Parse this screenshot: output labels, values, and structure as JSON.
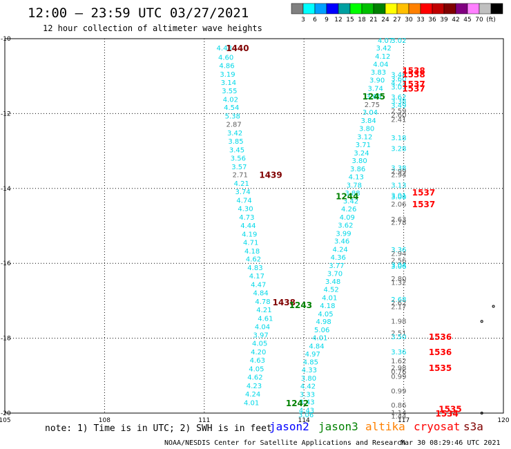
{
  "title": "12:00 – 23:59 UTC 03/27/2021",
  "subtitle": "12 hour collection of altimeter wave heights",
  "colorbar": {
    "colors": [
      "#808080",
      "#00ffff",
      "#00a0ff",
      "#0000ff",
      "#00a0a0",
      "#00ff00",
      "#00c000",
      "#008000",
      "#ffff00",
      "#ffc000",
      "#ff8000",
      "#ff0000",
      "#c00000",
      "#800000",
      "#800080",
      "#ff80ff",
      "#c0c0c0",
      "#000000"
    ],
    "ticks": [
      "3",
      "6",
      "9",
      "12",
      "15",
      "18",
      "21",
      "24",
      "27",
      "30",
      "33",
      "36",
      "39",
      "42",
      "45",
      "70",
      "(ft)"
    ]
  },
  "axes": {
    "x_ticks": [
      "105",
      "108",
      "111",
      "114",
      "117",
      "120"
    ],
    "y_ticks": [
      "-10",
      "-12",
      "-14",
      "-16",
      "-18",
      "-20"
    ]
  },
  "note": "note:  1) Time is in UTC; 2) SWH is in feet",
  "satellites": [
    {
      "name": "jason2",
      "color": "#0000ff"
    },
    {
      "name": "jason3",
      "color": "#008000"
    },
    {
      "name": "altika",
      "color": "#ff8000"
    },
    {
      "name": "cryosat",
      "color": "#ff0000"
    },
    {
      "name": "s3a",
      "color": "#800000"
    }
  ],
  "credit": "NOAA/NESDIS Center for Satellite Applications and Research",
  "timestamp": "Mar 30 08:29:46 UTC 2021",
  "chart_data": {
    "type": "scatter",
    "xlim": [
      105,
      120
    ],
    "ylim": [
      -20,
      -10
    ],
    "grid": true,
    "points": [
      {
        "x": 111.6,
        "y": -10.24,
        "v": "4.48",
        "c": "#00d8e8"
      },
      {
        "x": 111.65,
        "y": -10.49,
        "v": "4.60",
        "c": "#00d8e8"
      },
      {
        "x": 111.68,
        "y": -10.71,
        "v": "4.86",
        "c": "#00d8e8"
      },
      {
        "x": 111.7,
        "y": -10.94,
        "v": "3.19",
        "c": "#00d8e8"
      },
      {
        "x": 111.73,
        "y": -11.16,
        "v": "3.14",
        "c": "#00d8e8"
      },
      {
        "x": 111.76,
        "y": -11.38,
        "v": "3.55",
        "c": "#00d8e8"
      },
      {
        "x": 111.79,
        "y": -11.61,
        "v": "4.02",
        "c": "#00d8e8"
      },
      {
        "x": 111.82,
        "y": -11.83,
        "v": "4.54",
        "c": "#00d8e8"
      },
      {
        "x": 111.85,
        "y": -12.06,
        "v": "5.38",
        "c": "#00d8e8"
      },
      {
        "x": 111.89,
        "y": -12.28,
        "v": "2.87",
        "c": "#606060"
      },
      {
        "x": 111.92,
        "y": -12.51,
        "v": "3.42",
        "c": "#00d8e8"
      },
      {
        "x": 111.95,
        "y": -12.73,
        "v": "3.85",
        "c": "#00d8e8"
      },
      {
        "x": 111.98,
        "y": -12.96,
        "v": "3.45",
        "c": "#00d8e8"
      },
      {
        "x": 112.02,
        "y": -13.18,
        "v": "3.56",
        "c": "#00d8e8"
      },
      {
        "x": 112.05,
        "y": -13.41,
        "v": "3.57",
        "c": "#00d8e8"
      },
      {
        "x": 112.08,
        "y": -13.63,
        "v": "2.71",
        "c": "#606060"
      },
      {
        "x": 112.12,
        "y": -13.86,
        "v": "4.21",
        "c": "#00d8e8"
      },
      {
        "x": 112.16,
        "y": -14.08,
        "v": "3.74",
        "c": "#00d8e8"
      },
      {
        "x": 112.2,
        "y": -14.31,
        "v": "4.74",
        "c": "#00d8e8"
      },
      {
        "x": 112.24,
        "y": -14.53,
        "v": "4.30",
        "c": "#00d8e8"
      },
      {
        "x": 112.28,
        "y": -14.76,
        "v": "4.73",
        "c": "#00d8e8"
      },
      {
        "x": 112.32,
        "y": -14.98,
        "v": "4.44",
        "c": "#00d8e8"
      },
      {
        "x": 112.36,
        "y": -15.21,
        "v": "4.19",
        "c": "#00d8e8"
      },
      {
        "x": 112.4,
        "y": -15.43,
        "v": "4.71",
        "c": "#00d8e8"
      },
      {
        "x": 112.44,
        "y": -15.66,
        "v": "4.18",
        "c": "#00d8e8"
      },
      {
        "x": 112.48,
        "y": -15.88,
        "v": "4.62",
        "c": "#00d8e8"
      },
      {
        "x": 112.53,
        "y": -16.11,
        "v": "4.83",
        "c": "#00d8e8"
      },
      {
        "x": 112.58,
        "y": -16.33,
        "v": "4.17",
        "c": "#00d8e8"
      },
      {
        "x": 112.63,
        "y": -16.56,
        "v": "4.47",
        "c": "#00d8e8"
      },
      {
        "x": 112.7,
        "y": -16.78,
        "v": "4.84",
        "c": "#00d8e8"
      },
      {
        "x": 112.76,
        "y": -17.01,
        "v": "4.78",
        "c": "#00d8e8"
      },
      {
        "x": 112.8,
        "y": -17.23,
        "v": "4.21",
        "c": "#00d8e8"
      },
      {
        "x": 112.84,
        "y": -17.46,
        "v": "4.61",
        "c": "#00d8e8"
      },
      {
        "x": 112.75,
        "y": -17.68,
        "v": "4.04",
        "c": "#00d8e8"
      },
      {
        "x": 112.7,
        "y": -17.91,
        "v": "3.97",
        "c": "#00d8e8"
      },
      {
        "x": 112.67,
        "y": -18.13,
        "v": "4.05",
        "c": "#00d8e8"
      },
      {
        "x": 112.63,
        "y": -18.36,
        "v": "4.20",
        "c": "#00d8e8"
      },
      {
        "x": 112.6,
        "y": -18.58,
        "v": "4.63",
        "c": "#00d8e8"
      },
      {
        "x": 112.57,
        "y": -18.81,
        "v": "4.05",
        "c": "#00d8e8"
      },
      {
        "x": 112.53,
        "y": -19.03,
        "v": "4.62",
        "c": "#00d8e8"
      },
      {
        "x": 112.5,
        "y": -19.26,
        "v": "4.23",
        "c": "#00d8e8"
      },
      {
        "x": 112.46,
        "y": -19.48,
        "v": "4.24",
        "c": "#00d8e8"
      },
      {
        "x": 112.42,
        "y": -19.71,
        "v": "4.01",
        "c": "#00d8e8"
      },
      {
        "x": 116.45,
        "y": -10.04,
        "v": "4.07",
        "c": "#00d8e8"
      },
      {
        "x": 116.85,
        "y": -10.04,
        "v": "3.02",
        "c": "#00d8e8"
      },
      {
        "x": 116.4,
        "y": -10.24,
        "v": "3.42",
        "c": "#00d8e8"
      },
      {
        "x": 116.37,
        "y": -10.46,
        "v": "4.12",
        "c": "#00d8e8"
      },
      {
        "x": 116.31,
        "y": -10.67,
        "v": "4.04",
        "c": "#00d8e8"
      },
      {
        "x": 116.24,
        "y": -10.89,
        "v": "3.83",
        "c": "#00d8e8"
      },
      {
        "x": 116.2,
        "y": -11.1,
        "v": "3.90",
        "c": "#00d8e8"
      },
      {
        "x": 116.15,
        "y": -11.32,
        "v": "3.74",
        "c": "#00d8e8"
      },
      {
        "x": 116.1,
        "y": -11.53,
        "v": "3.66",
        "c": "#00d8e8"
      },
      {
        "x": 116.05,
        "y": -11.75,
        "v": "2.75",
        "c": "#606060"
      },
      {
        "x": 115.99,
        "y": -11.96,
        "v": "3.04",
        "c": "#00d8e8"
      },
      {
        "x": 115.94,
        "y": -12.18,
        "v": "3.84",
        "c": "#00d8e8"
      },
      {
        "x": 115.89,
        "y": -12.39,
        "v": "3.80",
        "c": "#00d8e8"
      },
      {
        "x": 115.83,
        "y": -12.61,
        "v": "3.12",
        "c": "#00d8e8"
      },
      {
        "x": 115.78,
        "y": -12.82,
        "v": "3.71",
        "c": "#00d8e8"
      },
      {
        "x": 115.73,
        "y": -13.04,
        "v": "3.24",
        "c": "#00d8e8"
      },
      {
        "x": 115.67,
        "y": -13.25,
        "v": "3.80",
        "c": "#00d8e8"
      },
      {
        "x": 115.62,
        "y": -13.47,
        "v": "3.86",
        "c": "#00d8e8"
      },
      {
        "x": 115.57,
        "y": -13.68,
        "v": "4.13",
        "c": "#00d8e8"
      },
      {
        "x": 115.51,
        "y": -13.9,
        "v": "3.78",
        "c": "#00d8e8"
      },
      {
        "x": 115.46,
        "y": -14.11,
        "v": "3.88",
        "c": "#00d8e8"
      },
      {
        "x": 115.41,
        "y": -14.33,
        "v": "3.42",
        "c": "#00d8e8"
      },
      {
        "x": 115.35,
        "y": -14.54,
        "v": "4.26",
        "c": "#00d8e8"
      },
      {
        "x": 115.3,
        "y": -14.76,
        "v": "4.09",
        "c": "#00d8e8"
      },
      {
        "x": 115.25,
        "y": -14.97,
        "v": "3.62",
        "c": "#00d8e8"
      },
      {
        "x": 115.19,
        "y": -15.19,
        "v": "3.99",
        "c": "#00d8e8"
      },
      {
        "x": 115.14,
        "y": -15.4,
        "v": "3.46",
        "c": "#00d8e8"
      },
      {
        "x": 115.09,
        "y": -15.62,
        "v": "4.24",
        "c": "#00d8e8"
      },
      {
        "x": 115.03,
        "y": -15.83,
        "v": "4.36",
        "c": "#00d8e8"
      },
      {
        "x": 114.98,
        "y": -16.05,
        "v": "3.77",
        "c": "#00d8e8"
      },
      {
        "x": 114.93,
        "y": -16.26,
        "v": "3.70",
        "c": "#00d8e8"
      },
      {
        "x": 114.87,
        "y": -16.48,
        "v": "3.48",
        "c": "#00d8e8"
      },
      {
        "x": 114.82,
        "y": -16.69,
        "v": "4.52",
        "c": "#00d8e8"
      },
      {
        "x": 114.77,
        "y": -16.91,
        "v": "4.01",
        "c": "#00d8e8"
      },
      {
        "x": 114.71,
        "y": -17.12,
        "v": "4.18",
        "c": "#00d8e8"
      },
      {
        "x": 114.65,
        "y": -17.34,
        "v": "4.05",
        "c": "#00d8e8"
      },
      {
        "x": 114.59,
        "y": -17.55,
        "v": "4.98",
        "c": "#00d8e8"
      },
      {
        "x": 114.54,
        "y": -17.77,
        "v": "5.06",
        "c": "#00d8e8"
      },
      {
        "x": 114.48,
        "y": -17.98,
        "v": "4.01",
        "c": "#00d8e8"
      },
      {
        "x": 114.38,
        "y": -18.2,
        "v": "4.84",
        "c": "#00d8e8"
      },
      {
        "x": 114.26,
        "y": -18.41,
        "v": "4.97",
        "c": "#00d8e8"
      },
      {
        "x": 114.2,
        "y": -18.63,
        "v": "4.85",
        "c": "#00d8e8"
      },
      {
        "x": 114.16,
        "y": -18.84,
        "v": "4.33",
        "c": "#00d8e8"
      },
      {
        "x": 114.14,
        "y": -19.06,
        "v": "3.80",
        "c": "#00d8e8"
      },
      {
        "x": 114.12,
        "y": -19.27,
        "v": "4.42",
        "c": "#00d8e8"
      },
      {
        "x": 114.1,
        "y": -19.49,
        "v": "3.33",
        "c": "#00d8e8"
      },
      {
        "x": 114.09,
        "y": -19.7,
        "v": "3.43",
        "c": "#00d8e8"
      },
      {
        "x": 114.08,
        "y": -19.92,
        "v": "4.43",
        "c": "#00d8e8"
      },
      {
        "x": 114.06,
        "y": -20.04,
        "v": "3.06",
        "c": "#00d8e8"
      },
      {
        "x": 116.85,
        "y": -10.95,
        "v": "3.48",
        "c": "#00d8e8"
      },
      {
        "x": 116.85,
        "y": -11.06,
        "v": "3.60",
        "c": "#00d8e8"
      },
      {
        "x": 116.85,
        "y": -11.17,
        "v": "4.21",
        "c": "#00d8e8"
      },
      {
        "x": 116.85,
        "y": -11.28,
        "v": "3.07",
        "c": "#00d8e8"
      },
      {
        "x": 116.85,
        "y": -11.55,
        "v": "3.62",
        "c": "#00d8e8"
      },
      {
        "x": 116.85,
        "y": -11.66,
        "v": "3.38",
        "c": "#00d8e8"
      },
      {
        "x": 116.85,
        "y": -11.77,
        "v": "3.49",
        "c": "#00d8e8"
      },
      {
        "x": 116.85,
        "y": -11.92,
        "v": "2.59",
        "c": "#606060"
      },
      {
        "x": 116.85,
        "y": -12.03,
        "v": "2.60",
        "c": "#606060"
      },
      {
        "x": 116.85,
        "y": -12.15,
        "v": "2.41",
        "c": "#606060"
      },
      {
        "x": 116.85,
        "y": -12.64,
        "v": "3.18",
        "c": "#00d8e8"
      },
      {
        "x": 116.85,
        "y": -12.92,
        "v": "3.28",
        "c": "#00d8e8"
      },
      {
        "x": 116.85,
        "y": -13.44,
        "v": "3.38",
        "c": "#00d8e8"
      },
      {
        "x": 116.85,
        "y": -13.53,
        "v": "2.99",
        "c": "#606060"
      },
      {
        "x": 116.85,
        "y": -13.63,
        "v": "2.94",
        "c": "#606060"
      },
      {
        "x": 116.85,
        "y": -13.9,
        "v": "3.13",
        "c": "#00d8e8"
      },
      {
        "x": 116.85,
        "y": -14.18,
        "v": "3.01",
        "c": "#00d8e8"
      },
      {
        "x": 116.85,
        "y": -14.22,
        "v": "3.00",
        "c": "#00d8e8"
      },
      {
        "x": 116.85,
        "y": -14.41,
        "v": "2.06",
        "c": "#606060"
      },
      {
        "x": 116.85,
        "y": -14.82,
        "v": "2.63",
        "c": "#606060"
      },
      {
        "x": 116.85,
        "y": -14.9,
        "v": "2.78",
        "c": "#606060"
      },
      {
        "x": 116.85,
        "y": -15.63,
        "v": "3.36",
        "c": "#00d8e8"
      },
      {
        "x": 116.85,
        "y": -15.73,
        "v": "2.94",
        "c": "#606060"
      },
      {
        "x": 116.85,
        "y": -15.91,
        "v": "2.56",
        "c": "#606060"
      },
      {
        "x": 116.85,
        "y": -16.03,
        "v": "3.04",
        "c": "#00d8e8"
      },
      {
        "x": 116.85,
        "y": -16.07,
        "v": "3.06",
        "c": "#00d8e8"
      },
      {
        "x": 116.85,
        "y": -16.4,
        "v": "2.80",
        "c": "#606060"
      },
      {
        "x": 116.85,
        "y": -16.5,
        "v": "1.32",
        "c": "#606060"
      },
      {
        "x": 116.85,
        "y": -16.96,
        "v": "2.68",
        "c": "#00d8e8"
      },
      {
        "x": 116.85,
        "y": -17.05,
        "v": "2.62",
        "c": "#606060"
      },
      {
        "x": 116.85,
        "y": -17.15,
        "v": "2.17",
        "c": "#606060"
      },
      {
        "x": 116.85,
        "y": -17.54,
        "v": "1.98",
        "c": "#606060"
      },
      {
        "x": 116.85,
        "y": -17.85,
        "v": "2.51",
        "c": "#606060"
      },
      {
        "x": 116.85,
        "y": -17.95,
        "v": "3.50",
        "c": "#00d8e8"
      },
      {
        "x": 116.85,
        "y": -18.36,
        "v": "3.36",
        "c": "#00d8e8"
      },
      {
        "x": 116.85,
        "y": -18.6,
        "v": "1.62",
        "c": "#606060"
      },
      {
        "x": 116.85,
        "y": -18.78,
        "v": "2.98",
        "c": "#606060"
      },
      {
        "x": 116.85,
        "y": -18.88,
        "v": "0.76",
        "c": "#606060"
      },
      {
        "x": 116.85,
        "y": -19.01,
        "v": "0.99",
        "c": "#606060"
      },
      {
        "x": 116.85,
        "y": -19.4,
        "v": "0.99",
        "c": "#606060"
      },
      {
        "x": 116.85,
        "y": -19.78,
        "v": "0.86",
        "c": "#606060"
      },
      {
        "x": 116.85,
        "y": -19.98,
        "v": "1.14",
        "c": "#606060"
      },
      {
        "x": 116.85,
        "y": -20.07,
        "v": "1.44",
        "c": "#606060"
      }
    ],
    "time_labels": [
      {
        "x": 112.0,
        "y": -10.24,
        "t": "1440",
        "c": "#800000"
      },
      {
        "x": 113.0,
        "y": -13.63,
        "t": "1439",
        "c": "#800000"
      },
      {
        "x": 113.4,
        "y": -17.03,
        "t": "1438",
        "c": "#800000"
      },
      {
        "x": 113.9,
        "y": -17.1,
        "t": "1243",
        "c": "#008000"
      },
      {
        "x": 113.8,
        "y": -19.72,
        "t": "1242",
        "c": "#008000"
      },
      {
        "x": 115.3,
        "y": -14.2,
        "t": "1244",
        "c": "#008000"
      },
      {
        "x": 116.1,
        "y": -11.53,
        "t": "1245",
        "c": "#008000"
      },
      {
        "x": 117.3,
        "y": -10.84,
        "t": "1538",
        "c": "#ff0000"
      },
      {
        "x": 117.3,
        "y": -10.94,
        "t": "1538",
        "c": "#ff0000"
      },
      {
        "x": 117.3,
        "y": -11.2,
        "t": "1537",
        "c": "#ff0000"
      },
      {
        "x": 117.3,
        "y": -11.32,
        "t": "1537",
        "c": "#ff0000"
      },
      {
        "x": 117.6,
        "y": -14.1,
        "t": "1537",
        "c": "#ff0000"
      },
      {
        "x": 117.6,
        "y": -14.41,
        "t": "1537",
        "c": "#ff0000"
      },
      {
        "x": 118.1,
        "y": -17.95,
        "t": "1536",
        "c": "#ff0000"
      },
      {
        "x": 118.1,
        "y": -18.36,
        "t": "1536",
        "c": "#ff0000"
      },
      {
        "x": 118.1,
        "y": -18.78,
        "t": "1535",
        "c": "#ff0000"
      },
      {
        "x": 118.4,
        "y": -19.88,
        "t": "1535",
        "c": "#ff0000"
      },
      {
        "x": 118.3,
        "y": -20.0,
        "t": "1534",
        "c": "#ff0000"
      }
    ],
    "islands": [
      {
        "x": 119.7,
        "y": -17.15
      },
      {
        "x": 119.35,
        "y": -17.55
      },
      {
        "x": 119.35,
        "y": -20.0
      }
    ]
  }
}
